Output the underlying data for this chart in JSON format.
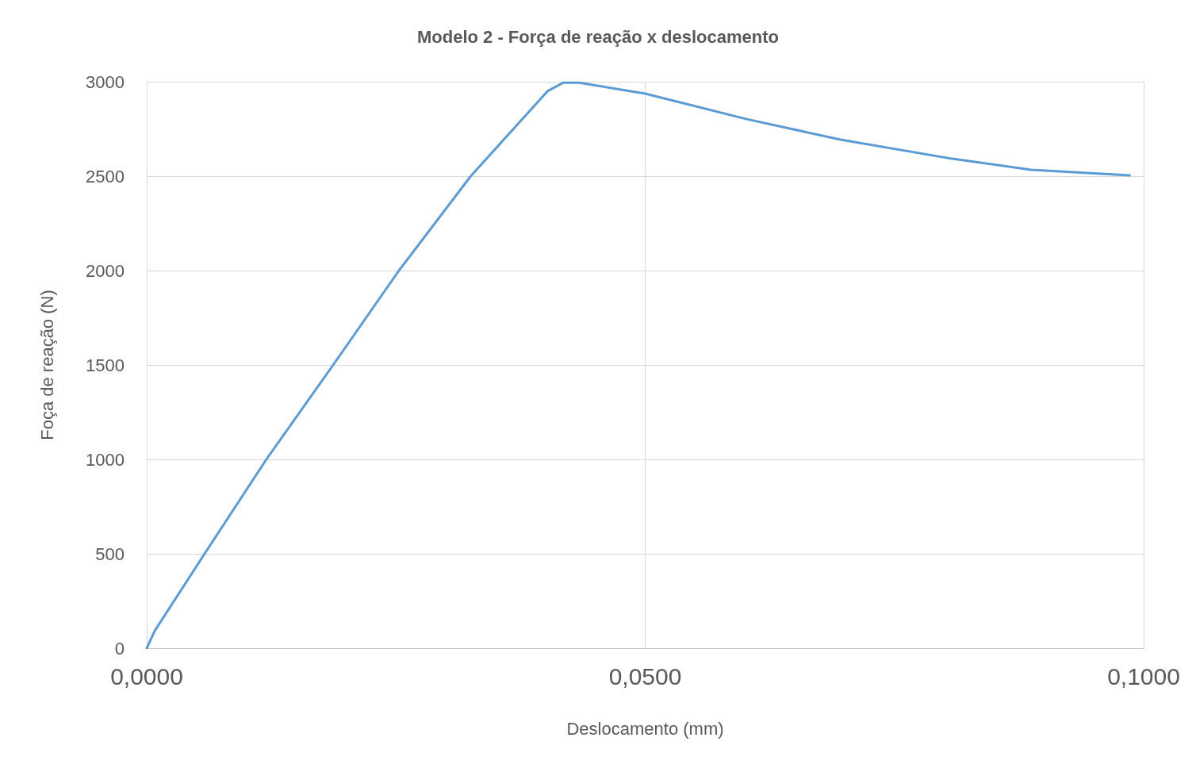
{
  "chart_data": {
    "type": "line",
    "title": "Modelo 2 - Força de reação x deslocamento",
    "xlabel": "Deslocamento (mm)",
    "ylabel": "Foça de reação (N)",
    "xlim": [
      0,
      0.1
    ],
    "xticks": [
      {
        "value": 0,
        "label": "0,0000"
      },
      {
        "value": 0.05,
        "label": "0,0500"
      },
      {
        "value": 0.1,
        "label": "0,1000"
      }
    ],
    "ylim": [
      0,
      3000
    ],
    "yticks": [
      0,
      500,
      1000,
      1500,
      2000,
      2500,
      3000
    ],
    "grid": true,
    "marker": "none",
    "line_style": "solid",
    "series": [
      {
        "color": "#5b9bd5",
        "x": [
          0,
          0.0008,
          0.0058,
          0.012,
          0.0187,
          0.0253,
          0.0325,
          0.0402,
          0.0418,
          0.0434,
          0.05,
          0.0601,
          0.0696,
          0.0808,
          0.0887,
          0.0986
        ],
        "values": [
          0,
          92,
          500,
          1000,
          1500,
          2000,
          2500,
          2950,
          2995,
          2995,
          2937,
          2803,
          2693,
          2592,
          2534,
          2504
        ]
      }
    ]
  }
}
